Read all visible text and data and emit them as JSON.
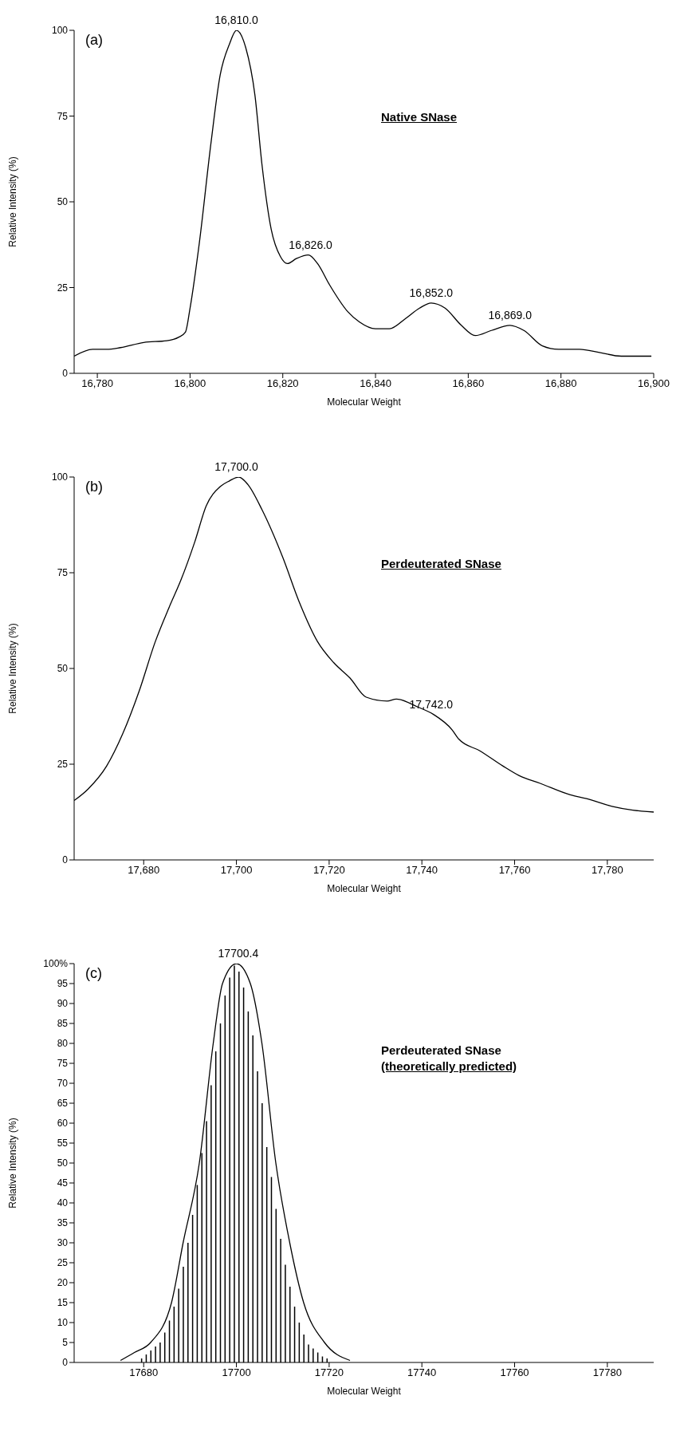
{
  "chart_data": [
    {
      "type": "line",
      "xlabel": "Molecular Weight",
      "ylabel": "Relative Intensity (%)",
      "xlim": [
        16775,
        16900
      ],
      "xticks": [
        {
          "value": 16780,
          "label": "16,780"
        },
        {
          "value": 16800,
          "label": "16,800"
        },
        {
          "value": 16820,
          "label": "16,820"
        },
        {
          "value": 16840,
          "label": "16,840"
        },
        {
          "value": 16860,
          "label": "16,860"
        },
        {
          "value": 16880,
          "label": "16,880"
        },
        {
          "value": 16900,
          "label": "16,900"
        }
      ],
      "ylim": [
        0,
        100
      ],
      "yticks": [
        0,
        25,
        50,
        75,
        100
      ],
      "series": [
        {
          "color": "#000000",
          "x": [
            16775,
            16779,
            16782,
            16785,
            16790,
            16795,
            16797.5,
            16799,
            16800,
            16802,
            16804.5,
            16806.5,
            16808.5,
            16810,
            16812,
            16814,
            16815.5,
            16817.5,
            16819.5,
            16821,
            16823,
            16825.5,
            16827.5,
            16830,
            16834,
            16836.5,
            16840,
            16843,
            16846.5,
            16849.5,
            16852,
            16855,
            16858.5,
            16861.5,
            16865,
            16869,
            16872,
            16876,
            16879.5,
            16884,
            16888.5,
            16893,
            16899.5
          ],
          "values": [
            5,
            7,
            7,
            7.5,
            9,
            9.5,
            10.5,
            12,
            19,
            38,
            67,
            87,
            96,
            100,
            95,
            81,
            61,
            42,
            34,
            32,
            33.5,
            34.5,
            32,
            26,
            18,
            15,
            13,
            13,
            16,
            19,
            20.5,
            19,
            14,
            11,
            12.5,
            14,
            12.5,
            8,
            7,
            7,
            6,
            5,
            5
          ]
        }
      ],
      "annotations": [
        "(a)",
        "Native SNase",
        {
          "text": "16,810.0",
          "x": 16810,
          "y": 100
        },
        {
          "text": "16,826.0",
          "x": 16826,
          "y": 34.5
        },
        {
          "text": "16,852.0",
          "x": 16852,
          "y": 20.5
        },
        {
          "text": "16,869.0",
          "x": 16869,
          "y": 14
        }
      ]
    },
    {
      "type": "line",
      "xlabel": "Molecular Weight",
      "ylabel": "Relative Intensity (%)",
      "xlim": [
        17665,
        17790
      ],
      "xticks": [
        {
          "value": 17680,
          "label": "17,680"
        },
        {
          "value": 17700,
          "label": "17,700"
        },
        {
          "value": 17720,
          "label": "17,720"
        },
        {
          "value": 17740,
          "label": "17,740"
        },
        {
          "value": 17760,
          "label": "17,760"
        },
        {
          "value": 17780,
          "label": "17,780"
        }
      ],
      "ylim": [
        0,
        100
      ],
      "yticks": [
        0,
        25,
        50,
        75,
        100
      ],
      "series": [
        {
          "color": "#000000",
          "x": [
            17665,
            17668,
            17672,
            17675.5,
            17679,
            17682.5,
            17685.5,
            17688,
            17691,
            17693.5,
            17696.5,
            17698.5,
            17700.5,
            17702.5,
            17705.5,
            17710,
            17713.5,
            17717.5,
            17721,
            17724.5,
            17728,
            17732.5,
            17734.5,
            17739,
            17742.5,
            17746.5,
            17748,
            17752.5,
            17757.5,
            17761,
            17765.5,
            17772,
            17775.5,
            17781,
            17785.5,
            17790
          ],
          "values": [
            15.5,
            18.5,
            24.5,
            33,
            44,
            57,
            66,
            73,
            83,
            92.5,
            97.5,
            99,
            100,
            98,
            91.5,
            79,
            67.5,
            57,
            51.5,
            47.5,
            42.5,
            41.5,
            42,
            40,
            38,
            34,
            31.5,
            28.5,
            24.5,
            22,
            20,
            17,
            16,
            14,
            13,
            12.5
          ]
        }
      ],
      "annotations": [
        "(b)",
        "Perdeuterated SNase",
        {
          "text": "17,700.0",
          "x": 17700,
          "y": 100
        },
        {
          "text": "17,742.0",
          "x": 17742,
          "y": 38
        }
      ]
    },
    {
      "type": "line",
      "xlabel": "Molecular Weight",
      "ylabel": "Relative Intensity (%)",
      "xlim": [
        17665,
        17790
      ],
      "xticks": [
        17680,
        17700,
        17720,
        17740,
        17760,
        17780
      ],
      "ylim": [
        0,
        100
      ],
      "yticks": [
        0,
        5,
        10,
        15,
        20,
        25,
        30,
        35,
        40,
        45,
        50,
        55,
        60,
        65,
        70,
        75,
        80,
        85,
        90,
        95,
        {
          "value": 100,
          "label": "100%"
        }
      ],
      "series": [
        {
          "type": "bar",
          "color": "#000000",
          "x": [
            17679.5,
            17680.5,
            17681.5,
            17682.5,
            17683.5,
            17684.5,
            17685.5,
            17686.5,
            17687.5,
            17688.5,
            17689.5,
            17690.5,
            17691.5,
            17692.5,
            17693.5,
            17694.5,
            17695.5,
            17696.5,
            17697.5,
            17698.5,
            17699.5,
            17700.5,
            17701.5,
            17702.5,
            17703.5,
            17704.5,
            17705.5,
            17706.5,
            17707.5,
            17708.5,
            17709.5,
            17710.5,
            17711.5,
            17712.5,
            17713.5,
            17714.5,
            17715.5,
            17716.5,
            17717.5,
            17718.5,
            17719.5
          ],
          "values": [
            1,
            2,
            3,
            4,
            5,
            7.5,
            10.5,
            14,
            18.5,
            24,
            30,
            37,
            44.5,
            52.5,
            60.5,
            69.5,
            78,
            85,
            92,
            96.5,
            99.5,
            98,
            94,
            88,
            82,
            73,
            65,
            54,
            46.5,
            38.5,
            31,
            24.5,
            19,
            14,
            10,
            7,
            4.5,
            3.5,
            2.5,
            1.5,
            1
          ]
        },
        {
          "color": "#000000",
          "x": [
            17675,
            17678,
            17681.5,
            17686,
            17688.5,
            17692,
            17695,
            17697,
            17700,
            17703,
            17705.5,
            17708.5,
            17711.5,
            17714.5,
            17719,
            17724.5
          ],
          "values": [
            0.5,
            2.5,
            5,
            15,
            30,
            50,
            80,
            95,
            100,
            95,
            80,
            50,
            30,
            15,
            5,
            0.5
          ]
        }
      ],
      "annotations": [
        "(c)",
        "Perdeuterated SNase",
        "(theoretically predicted)",
        {
          "text": "17700.4",
          "x": 17700.4,
          "y": 100
        }
      ]
    }
  ]
}
